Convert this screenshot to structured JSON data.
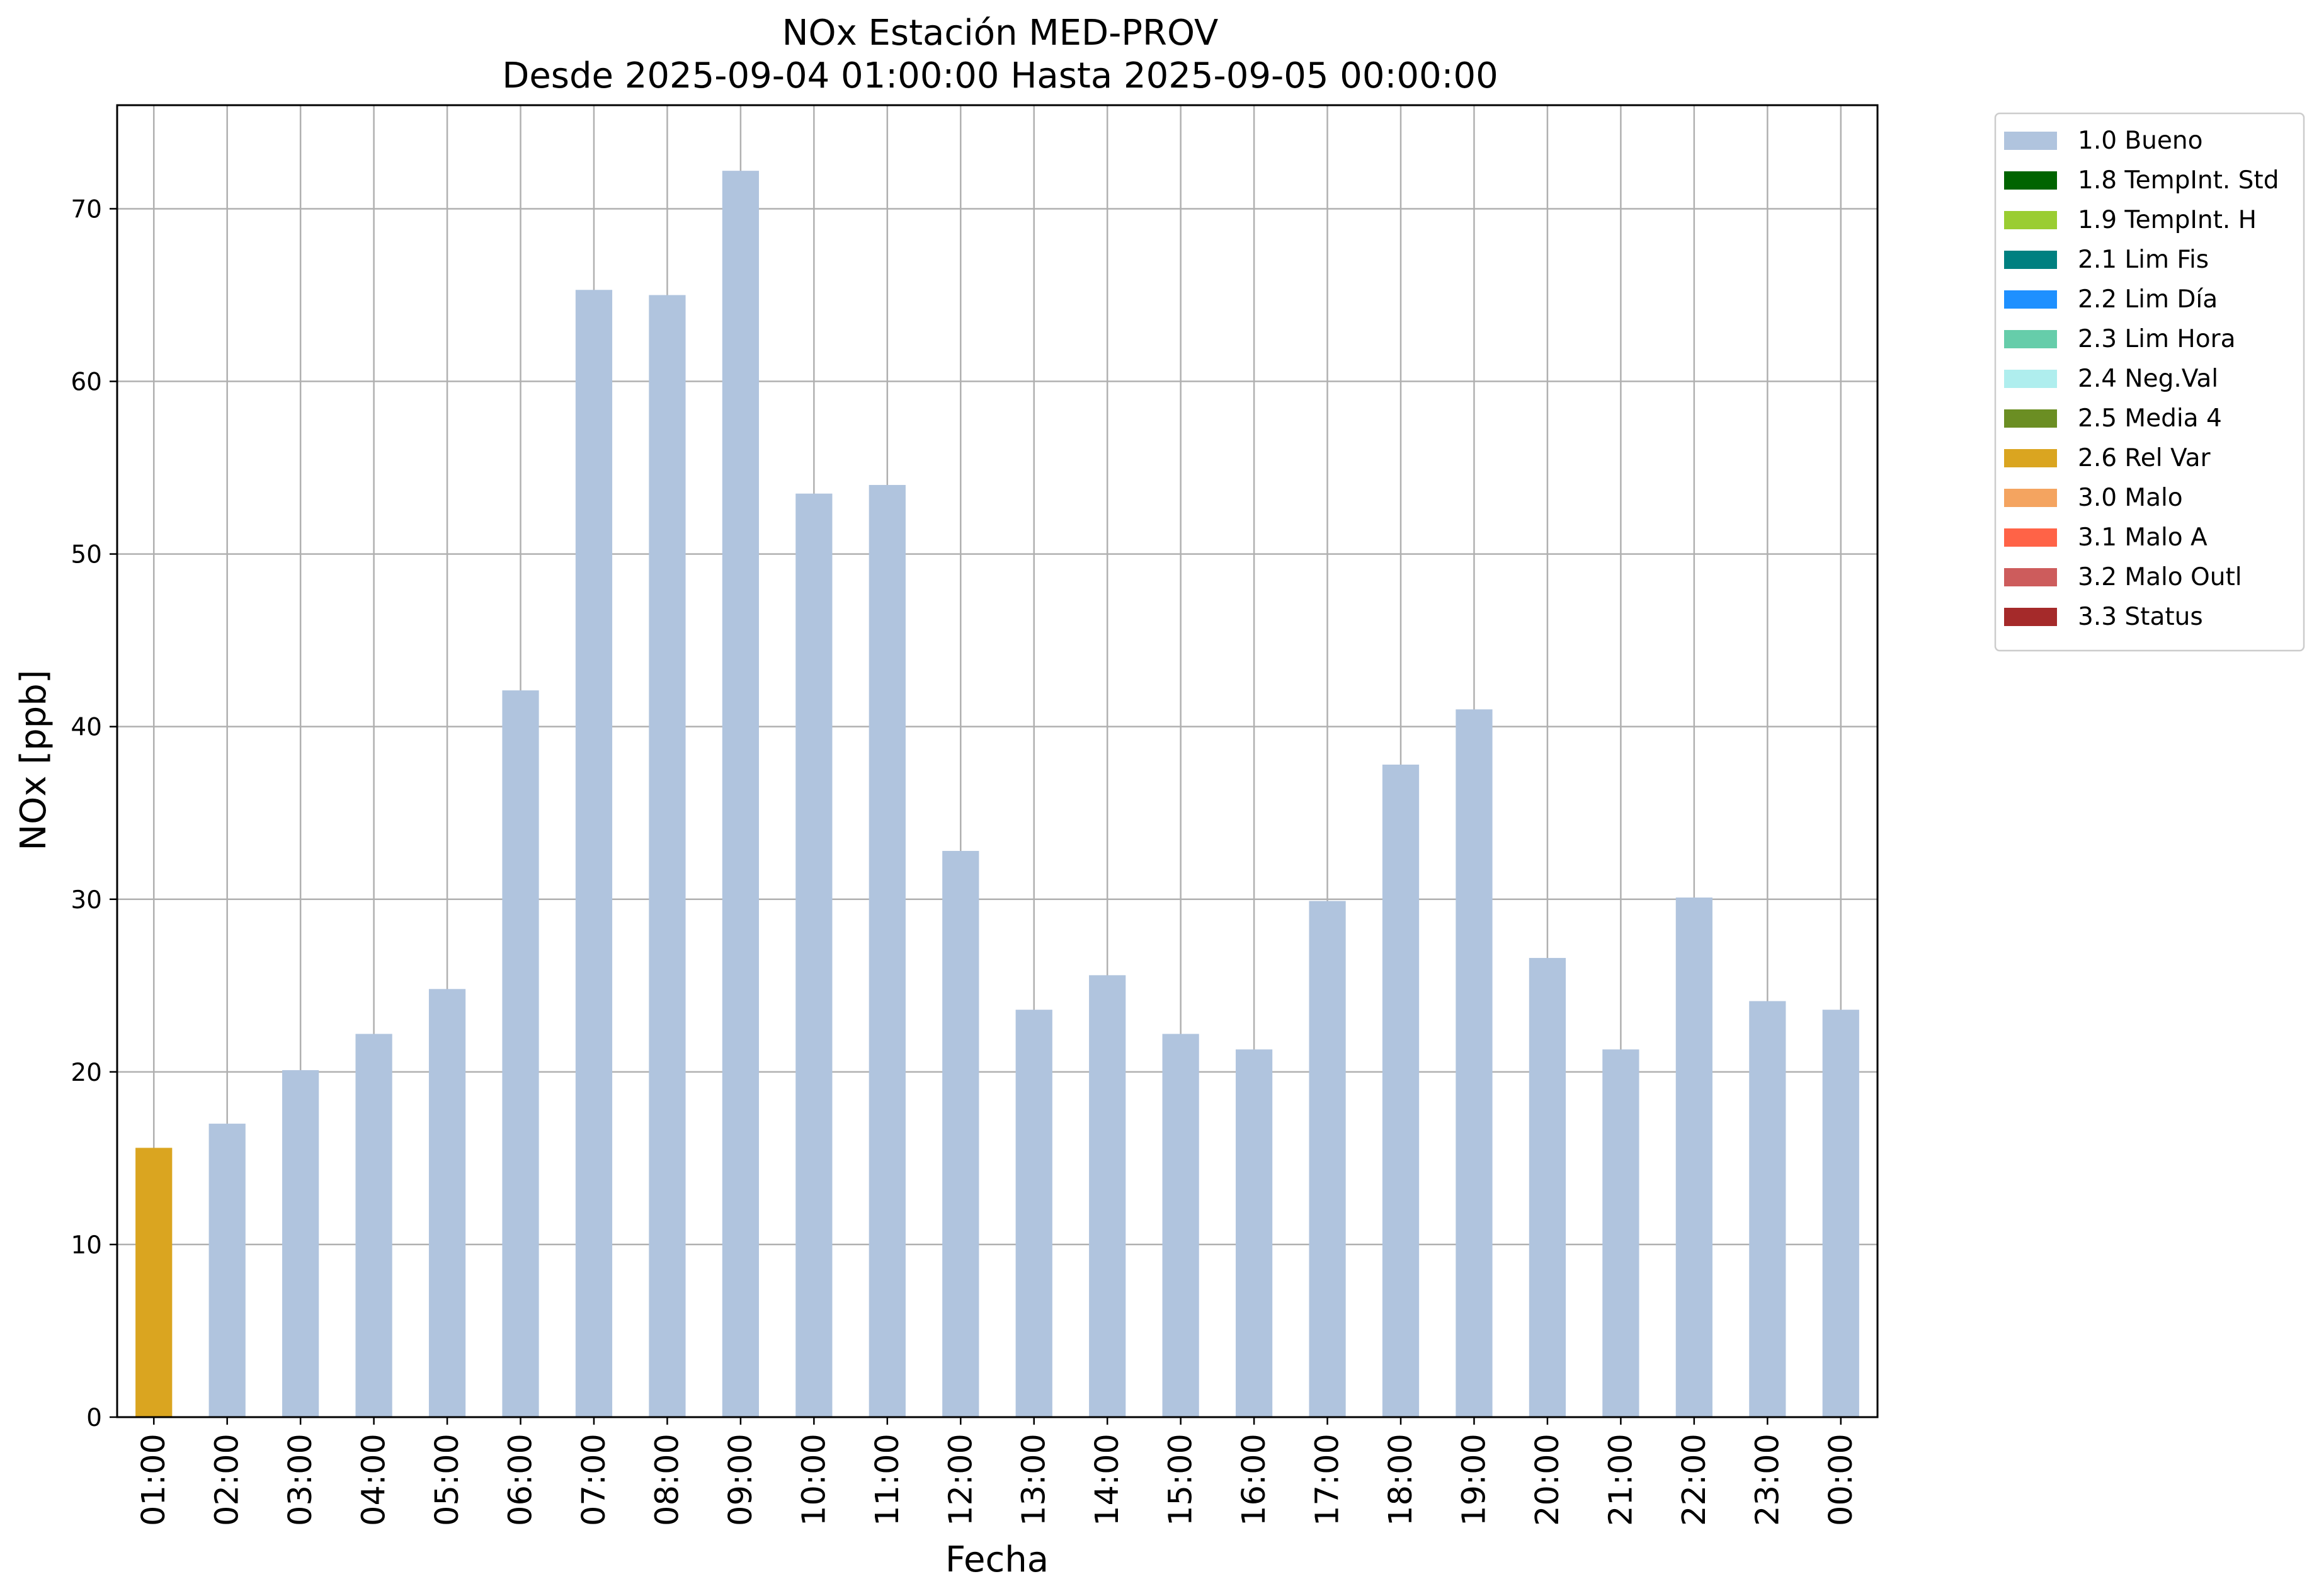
{
  "chart_data": {
    "type": "bar",
    "title": "NOx Estación MED-PROV",
    "subtitle": "Desde 2025-09-04 01:00:00 Hasta 2025-09-05 00:00:00",
    "xlabel": "Fecha",
    "ylabel": "NOx [ppb]",
    "ylim": [
      0,
      76
    ],
    "yticks": [
      0,
      10,
      20,
      30,
      40,
      50,
      60,
      70
    ],
    "grid": true,
    "legend_position": "outside-right-top",
    "categories": [
      "01:00",
      "02:00",
      "03:00",
      "04:00",
      "05:00",
      "06:00",
      "07:00",
      "08:00",
      "09:00",
      "10:00",
      "11:00",
      "12:00",
      "13:00",
      "14:00",
      "15:00",
      "16:00",
      "17:00",
      "18:00",
      "19:00",
      "20:00",
      "21:00",
      "22:00",
      "23:00",
      "00:00"
    ],
    "values": [
      15.6,
      17.0,
      20.1,
      22.2,
      24.8,
      42.1,
      65.3,
      65.0,
      72.2,
      53.5,
      54.0,
      32.8,
      23.6,
      25.6,
      22.2,
      21.3,
      29.9,
      37.8,
      41.0,
      26.6,
      21.3,
      30.1,
      24.1,
      23.6
    ],
    "flags": [
      "2.6 Rel Var",
      "1.0 Bueno",
      "1.0 Bueno",
      "1.0 Bueno",
      "1.0 Bueno",
      "1.0 Bueno",
      "1.0 Bueno",
      "1.0 Bueno",
      "1.0 Bueno",
      "1.0 Bueno",
      "1.0 Bueno",
      "1.0 Bueno",
      "1.0 Bueno",
      "1.0 Bueno",
      "1.0 Bueno",
      "1.0 Bueno",
      "1.0 Bueno",
      "1.0 Bueno",
      "1.0 Bueno",
      "1.0 Bueno",
      "1.0 Bueno",
      "1.0 Bueno",
      "1.0 Bueno",
      "1.0 Bueno"
    ],
    "legend": [
      {
        "label": "1.0 Bueno",
        "color": "#b0c4de"
      },
      {
        "label": "1.8 TempInt. Std",
        "color": "#006400"
      },
      {
        "label": "1.9 TempInt. H",
        "color": "#9acd32"
      },
      {
        "label": "2.1 Lim Fis",
        "color": "#008080"
      },
      {
        "label": "2.2 Lim Día",
        "color": "#1e90ff"
      },
      {
        "label": "2.3 Lim Hora",
        "color": "#66cdaa"
      },
      {
        "label": "2.4 Neg.Val",
        "color": "#afeeee"
      },
      {
        "label": "2.5 Media 4",
        "color": "#6b8e23"
      },
      {
        "label": "2.6 Rel Var",
        "color": "#daa520"
      },
      {
        "label": "3.0 Malo",
        "color": "#f4a460"
      },
      {
        "label": "3.1 Malo A",
        "color": "#ff6347"
      },
      {
        "label": "3.2 Malo Outl",
        "color": "#cd5c5c"
      },
      {
        "label": "3.3 Status",
        "color": "#a52a2a"
      }
    ]
  }
}
